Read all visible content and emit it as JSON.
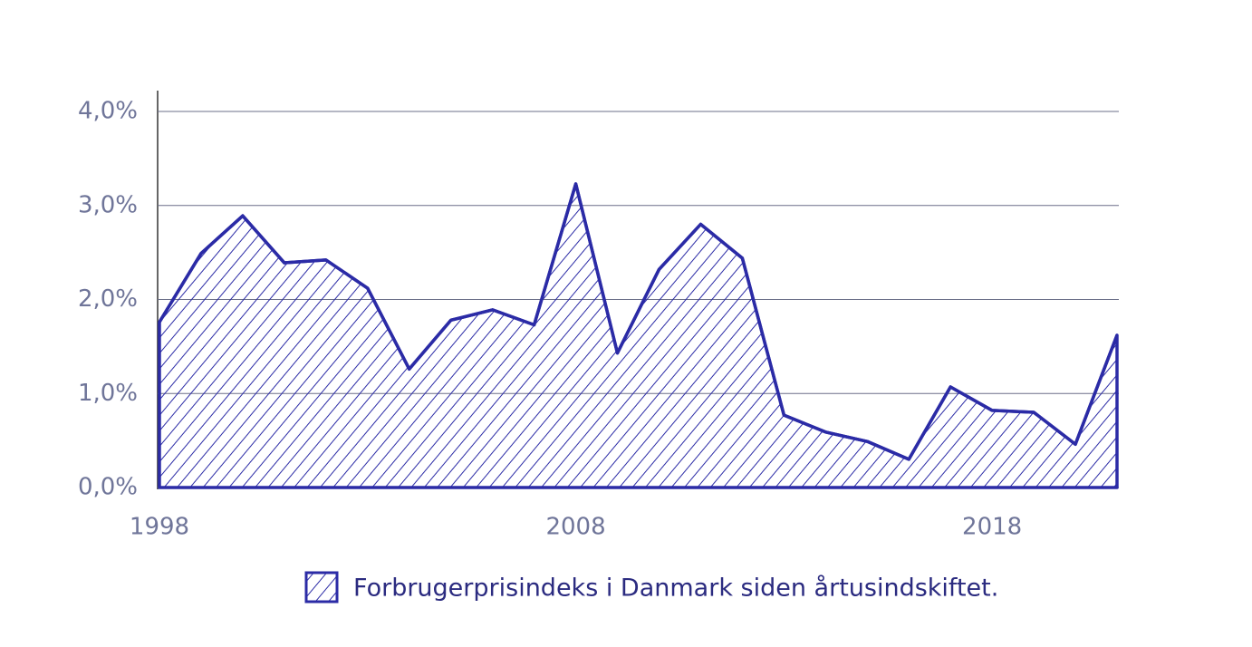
{
  "chart_data": {
    "type": "area",
    "legend_label": "Forbrugerprisindeks i Danmark siden årtusindskiftet.",
    "x": [
      1998,
      1999,
      2000,
      2001,
      2002,
      2003,
      2004,
      2005,
      2006,
      2007,
      2008,
      2009,
      2010,
      2011,
      2012,
      2013,
      2014,
      2015,
      2016,
      2017,
      2018,
      2019,
      2020,
      2021
    ],
    "values": [
      1.76,
      2.49,
      2.89,
      2.39,
      2.42,
      2.12,
      1.26,
      1.78,
      1.89,
      1.73,
      3.23,
      1.43,
      2.32,
      2.8,
      2.44,
      0.77,
      0.59,
      0.49,
      0.3,
      1.07,
      0.82,
      0.8,
      0.46,
      1.62
    ],
    "color": "#2b2ba6",
    "xlim": [
      1998,
      2021
    ],
    "xticks": [
      1998,
      2008,
      2018
    ],
    "ylim": [
      0,
      4
    ],
    "yticks": [
      {
        "value": 0,
        "label": "0,0%"
      },
      {
        "value": 1,
        "label": "1,0%"
      },
      {
        "value": 2,
        "label": "2,0%"
      },
      {
        "value": 3,
        "label": "3,0%"
      },
      {
        "value": 4,
        "label": "4,0%"
      }
    ],
    "grid": true
  }
}
